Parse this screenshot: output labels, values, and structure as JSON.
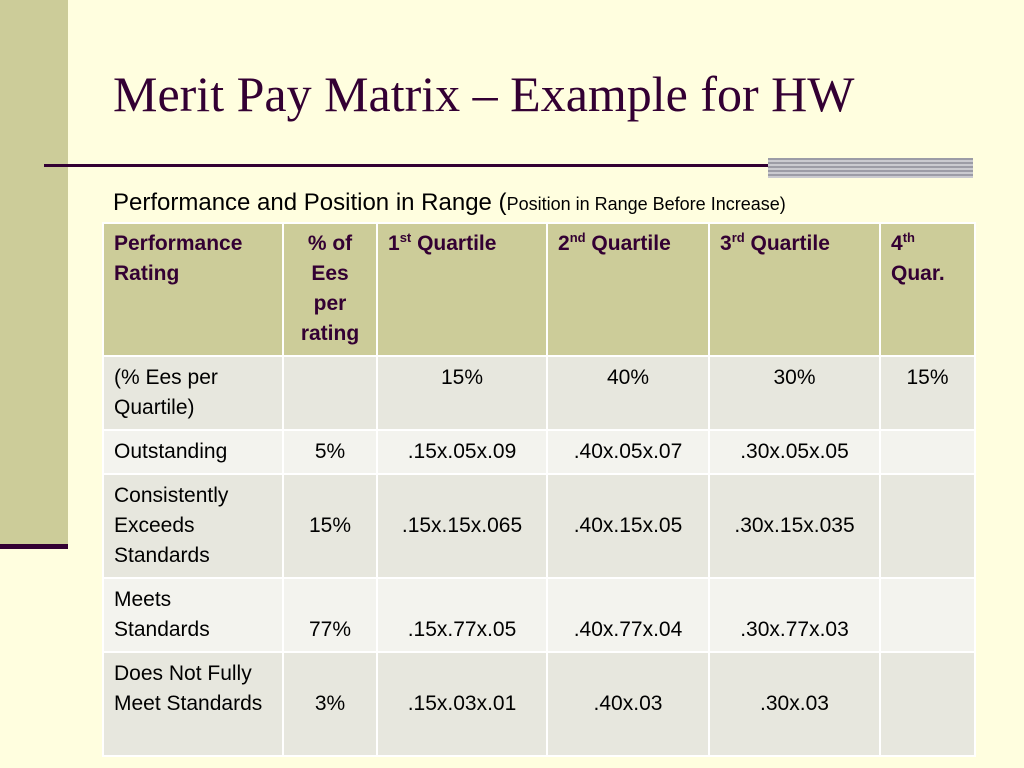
{
  "title": "Merit Pay Matrix – Example for HW",
  "subtitle": {
    "main": "Performance and Position in Range (",
    "small": "Position in Range Before Increase)"
  },
  "table": {
    "headers": {
      "rating": "Performance Rating",
      "pct": "% of Ees per rating",
      "q1_num": "1",
      "q1_sup": "st",
      "q1_word": " Quartile",
      "q2_num": "2",
      "q2_sup": "nd",
      "q2_word": " Quartile",
      "q3_num": "3",
      "q3_sup": "rd",
      "q3_word": " Quartile",
      "q4_num": "4",
      "q4_sup": "th",
      "q4_word": "Quar."
    },
    "rows": [
      {
        "rating": "(% Ees per Quartile)",
        "pct": "",
        "q1": "15%",
        "q2": "40%",
        "q3": "30%",
        "q4": "15%"
      },
      {
        "rating": "Outstanding",
        "pct": "5%",
        "q1": ".15x.05x.09",
        "q2": ".40x.05x.07",
        "q3": ".30x.05x.05",
        "q4": ""
      },
      {
        "rating": "Consistently Exceeds Standards",
        "pct": "15%",
        "q1": ".15x.15x.065",
        "q2": ".40x.15x.05",
        "q3": ".30x.15x.035",
        "q4": ""
      },
      {
        "rating": "Meets Standards",
        "pct": "77%",
        "q1": ".15x.77x.05",
        "q2": ".40x.77x.04",
        "q3": ".30x.77x.03",
        "q4": ""
      },
      {
        "rating": "Does Not Fully Meet Standards",
        "pct": "3%",
        "q1": ".15x.03x.01",
        "q2": ".40x.03",
        "q3": ".30x.03",
        "q4": ""
      }
    ]
  }
}
